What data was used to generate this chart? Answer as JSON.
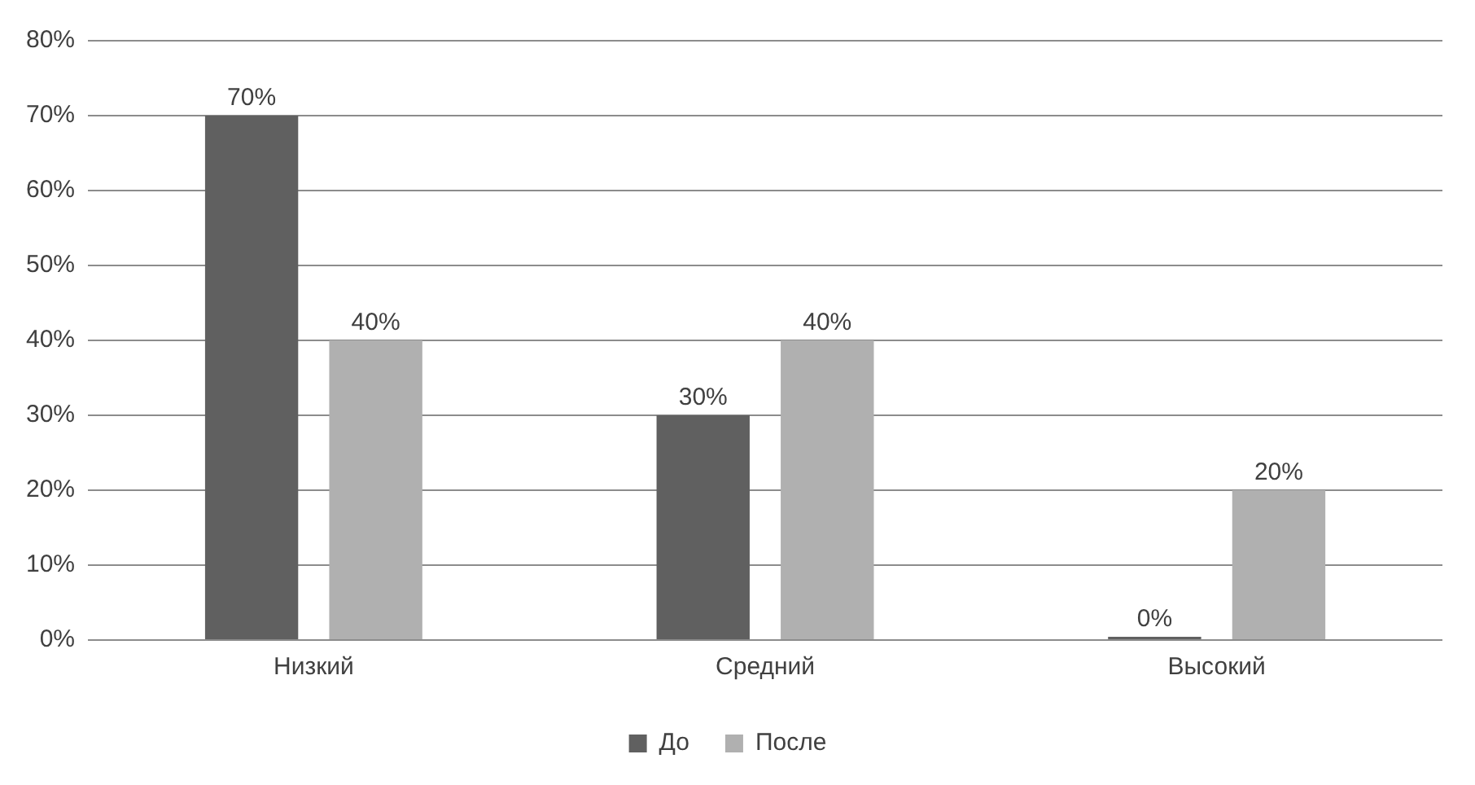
{
  "chart_data": {
    "type": "bar",
    "categories": [
      "Низкий",
      "Средний",
      "Высокий"
    ],
    "series": [
      {
        "name": "До",
        "color": "#606060",
        "values": [
          70,
          30,
          0
        ],
        "value_labels": [
          "70%",
          "30%",
          "0%"
        ]
      },
      {
        "name": "После",
        "color": "#b0b0b0",
        "values": [
          40,
          40,
          20
        ],
        "value_labels": [
          "40%",
          "40%",
          "20%"
        ]
      }
    ],
    "ylim": [
      0,
      80
    ],
    "yticks": [
      {
        "value": 0,
        "label": "0%"
      },
      {
        "value": 10,
        "label": "10%"
      },
      {
        "value": 20,
        "label": "20%"
      },
      {
        "value": 30,
        "label": "30%"
      },
      {
        "value": 40,
        "label": "40%"
      },
      {
        "value": 50,
        "label": "50%"
      },
      {
        "value": 60,
        "label": "60%"
      },
      {
        "value": 70,
        "label": "70%"
      },
      {
        "value": 80,
        "label": "80%"
      }
    ],
    "grid": "y",
    "legend": "bottom"
  }
}
